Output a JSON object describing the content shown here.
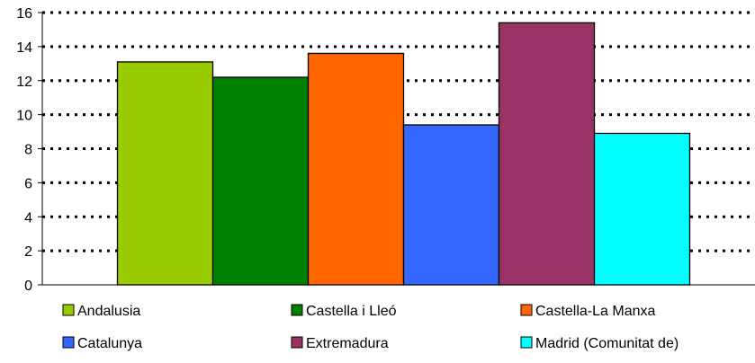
{
  "chart_data": {
    "type": "bar",
    "categories": [
      "Andalusia",
      "Castella i Lleó",
      "Castella-La Manxa",
      "Catalunya",
      "Extremadura",
      "Madrid (Comunitat de)"
    ],
    "values": [
      13.1,
      12.2,
      13.6,
      9.4,
      15.4,
      8.9
    ],
    "colors": [
      "#99cc00",
      "#008000",
      "#ff6600",
      "#3366ff",
      "#993366",
      "#00ffff"
    ],
    "title": "",
    "xlabel": "",
    "ylabel": "",
    "ylim": [
      0,
      16
    ],
    "yticks": [
      0,
      2,
      4,
      6,
      8,
      10,
      12,
      14,
      16
    ],
    "grid": true,
    "grid_style": "dotted",
    "legend_position": "bottom"
  }
}
